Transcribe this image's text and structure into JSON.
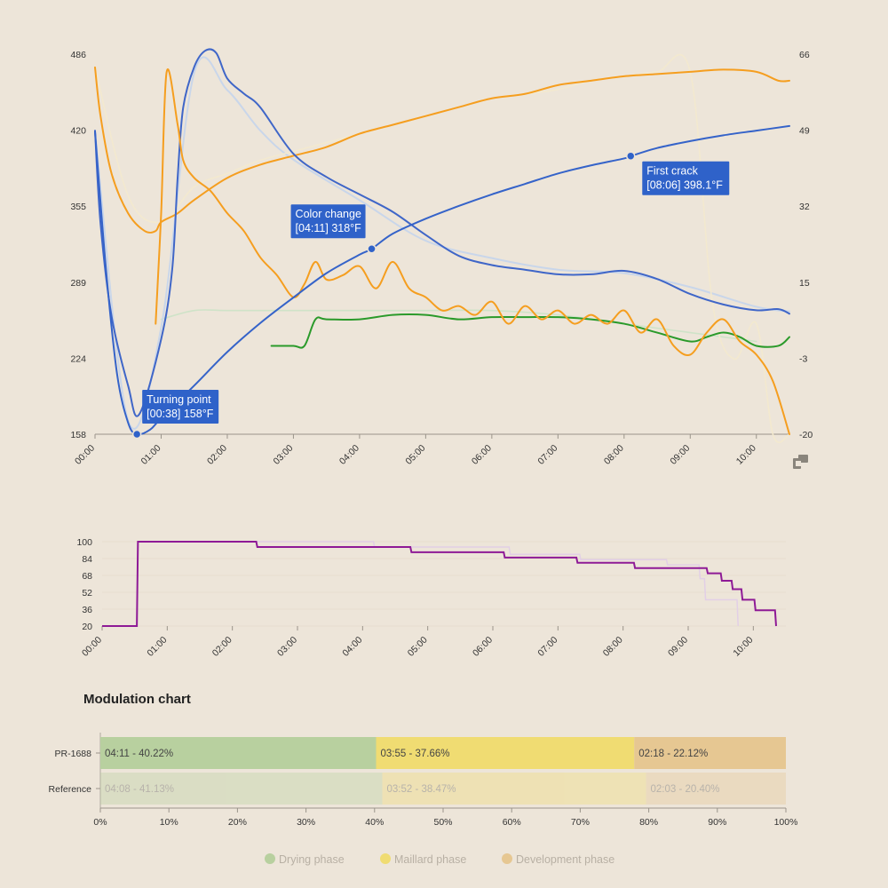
{
  "chart_data": [
    {
      "type": "line",
      "x_ticks": [
        "00:00",
        "01:00",
        "02:00",
        "03:00",
        "04:00",
        "05:00",
        "06:00",
        "07:00",
        "08:00",
        "09:00",
        "10:00"
      ],
      "y_left_ticks": [
        "486",
        "420",
        "355",
        "289",
        "224",
        "158"
      ],
      "y_right_ticks": [
        "66",
        "49",
        "32",
        "15",
        "-3",
        "-20"
      ],
      "ylim_left": [
        158,
        486
      ],
      "ylim_right": [
        -20,
        66
      ],
      "xlim_seconds": [
        0,
        630
      ],
      "colors": {
        "bean_temp": "#3563c9",
        "env_temp": "#3f66c8",
        "ror": "#f59e1f",
        "ror_env": "#f59e1f",
        "power": "#2a9a2a",
        "reference": "#f3e9cf",
        "reference_blue": "#c9d6ea",
        "reference_green": "#cfe3c8"
      },
      "series": [
        {
          "key": "bean_temp",
          "axis": "left",
          "x": [
            "00:00",
            "00:10",
            "00:20",
            "00:30",
            "00:38",
            "00:50",
            "01:00",
            "01:30",
            "02:00",
            "02:30",
            "03:00",
            "03:30",
            "04:00",
            "04:11",
            "04:30",
            "05:00",
            "05:30",
            "06:00",
            "06:30",
            "07:00",
            "07:30",
            "08:00",
            "08:06",
            "08:30",
            "09:00",
            "09:30",
            "10:00",
            "10:30"
          ],
          "y": [
            419,
            300,
            210,
            168,
            158,
            162,
            172,
            200,
            229,
            254,
            276,
            297,
            313,
            318,
            331,
            344,
            355,
            365,
            374,
            383,
            390,
            396,
            398,
            405,
            411,
            416,
            420,
            424
          ]
        },
        {
          "key": "env_temp",
          "axis": "left",
          "x": [
            "00:00",
            "00:05",
            "00:15",
            "00:30",
            "00:40",
            "01:00",
            "01:10",
            "01:15",
            "01:20",
            "01:30",
            "01:40",
            "01:50",
            "02:00",
            "02:15",
            "02:30",
            "03:00",
            "03:30",
            "04:00",
            "04:30",
            "05:00",
            "05:30",
            "06:00",
            "06:30",
            "07:00",
            "07:30",
            "08:00",
            "08:30",
            "09:00",
            "09:30",
            "10:00",
            "10:20",
            "10:30"
          ],
          "y": [
            420,
            340,
            260,
            200,
            175,
            240,
            300,
            380,
            440,
            475,
            489,
            487,
            465,
            452,
            440,
            400,
            380,
            365,
            350,
            330,
            312,
            304,
            300,
            296,
            296,
            299,
            292,
            279,
            270,
            265,
            266,
            262
          ]
        },
        {
          "key": "ror",
          "axis": "right",
          "x": [
            "00:00",
            "00:05",
            "00:15",
            "00:30",
            "00:45",
            "00:55",
            "01:00",
            "01:15",
            "01:30",
            "02:00",
            "02:30",
            "03:00",
            "03:30",
            "04:00",
            "04:30",
            "05:00",
            "05:30",
            "06:00",
            "06:30",
            "07:00",
            "07:30",
            "08:00",
            "08:30",
            "09:00",
            "09:30",
            "10:00",
            "10:20",
            "10:30"
          ],
          "y": [
            63,
            52,
            39,
            30,
            26,
            26,
            28,
            30,
            33,
            38,
            41,
            43,
            45,
            48,
            50,
            52,
            54,
            56,
            57,
            59,
            60,
            61,
            61.5,
            62,
            62.5,
            62,
            60,
            60
          ]
        },
        {
          "key": "ror_env",
          "axis": "right",
          "x": [
            "00:55",
            "01:00",
            "01:05",
            "01:15",
            "01:20",
            "01:30",
            "01:45",
            "02:00",
            "02:15",
            "02:30",
            "02:45",
            "03:00",
            "03:10",
            "03:20",
            "03:30",
            "03:45",
            "04:00",
            "04:15",
            "04:30",
            "04:45",
            "05:00",
            "05:15",
            "05:30",
            "05:45",
            "06:00",
            "06:15",
            "06:30",
            "06:45",
            "07:00",
            "07:15",
            "07:30",
            "07:45",
            "08:00",
            "08:15",
            "08:30",
            "08:45",
            "09:00",
            "09:15",
            "09:30",
            "09:45",
            "10:00",
            "10:15",
            "10:30"
          ],
          "y": [
            5,
            30,
            62,
            50,
            42,
            38,
            35,
            30,
            26,
            20,
            16,
            11,
            14,
            19,
            15,
            16,
            18,
            13,
            19,
            13,
            11,
            8,
            9,
            7,
            10,
            5,
            9,
            6,
            8,
            5,
            7,
            5,
            8,
            3,
            6,
            0,
            -2,
            3,
            6,
            1,
            -2,
            -8,
            -20
          ]
        },
        {
          "key": "power",
          "axis": "right",
          "x": [
            "02:40",
            "03:00",
            "03:10",
            "03:20",
            "03:30",
            "04:00",
            "04:30",
            "05:00",
            "05:30",
            "06:00",
            "06:30",
            "07:00",
            "07:30",
            "08:00",
            "08:30",
            "09:00",
            "09:15",
            "09:30",
            "09:45",
            "10:00",
            "10:20",
            "10:30"
          ],
          "y": [
            0,
            0,
            0,
            6,
            6,
            6,
            7,
            7,
            6,
            6.5,
            6.5,
            6.5,
            6,
            5,
            3,
            1,
            2,
            3,
            2,
            0,
            0,
            2
          ]
        },
        {
          "key": "reference",
          "axis": "right",
          "x": [
            "00:00",
            "00:30",
            "01:00",
            "01:30",
            "02:00",
            "02:30",
            "03:00",
            "03:30",
            "04:00",
            "04:30",
            "05:00",
            "05:30",
            "06:00",
            "06:30",
            "07:00",
            "07:30",
            "08:00",
            "08:30",
            "09:00",
            "09:20",
            "09:40",
            "10:00",
            "10:15",
            "10:30"
          ],
          "y": [
            63,
            34,
            28,
            36,
            39,
            42,
            44,
            46,
            48,
            50,
            52,
            54,
            56,
            57,
            58,
            60,
            61,
            62,
            62,
            10,
            -3,
            5,
            -20,
            -20
          ]
        },
        {
          "key": "reference_blue",
          "axis": "left",
          "x": [
            "00:00",
            "00:30",
            "01:00",
            "01:30",
            "02:00",
            "02:30",
            "03:00",
            "04:00",
            "05:00",
            "06:00",
            "07:00",
            "08:00",
            "09:00",
            "10:00",
            "10:30"
          ],
          "y": [
            419,
            170,
            250,
            470,
            455,
            420,
            395,
            360,
            325,
            310,
            300,
            297,
            285,
            268,
            264
          ]
        },
        {
          "key": "reference_green",
          "axis": "right",
          "x": [
            "01:00",
            "01:30",
            "02:00",
            "03:00",
            "04:00",
            "05:00",
            "06:00",
            "07:00",
            "08:00",
            "09:00",
            "10:00"
          ],
          "y": [
            6,
            8,
            8,
            8,
            8,
            8,
            8,
            7,
            5,
            3,
            1
          ]
        }
      ],
      "annotations": [
        {
          "x": "00:38",
          "y": 158,
          "line1": "Turning point",
          "line2": "[00:38] 158°F"
        },
        {
          "x": "04:11",
          "y": 318,
          "line1": "Color change",
          "line2": "[04:11] 318°F"
        },
        {
          "x": "08:06",
          "y": 398.1,
          "line1": "First crack",
          "line2": "[08:06] 398.1°F"
        }
      ]
    },
    {
      "type": "line",
      "x_ticks": [
        "00:00",
        "01:00",
        "02:00",
        "03:00",
        "04:00",
        "05:00",
        "06:00",
        "07:00",
        "08:00",
        "09:00",
        "10:00"
      ],
      "y_ticks": [
        "100",
        "84",
        "68",
        "52",
        "36",
        "20"
      ],
      "ylim": [
        20,
        100
      ],
      "colors": {
        "power": "#8e1a96",
        "reference": "#e2cfe6"
      },
      "series": [
        {
          "key": "power",
          "steps": [
            [
              "00:00",
              20
            ],
            [
              "00:32",
              20
            ],
            [
              "00:33",
              100
            ],
            [
              "02:22",
              100
            ],
            [
              "02:23",
              95
            ],
            [
              "04:44",
              95
            ],
            [
              "04:45",
              90
            ],
            [
              "06:10",
              90
            ],
            [
              "06:11",
              85
            ],
            [
              "07:17",
              85
            ],
            [
              "07:18",
              80
            ],
            [
              "08:10",
              80
            ],
            [
              "08:11",
              75
            ],
            [
              "09:17",
              75
            ],
            [
              "09:18",
              70
            ],
            [
              "09:30",
              70
            ],
            [
              "09:31",
              63
            ],
            [
              "09:40",
              63
            ],
            [
              "09:41",
              55
            ],
            [
              "09:49",
              55
            ],
            [
              "09:50",
              45
            ],
            [
              "10:01",
              45
            ],
            [
              "10:02",
              35
            ],
            [
              "10:20",
              35
            ],
            [
              "10:21",
              20
            ]
          ]
        },
        {
          "key": "reference",
          "steps": [
            [
              "00:00",
              20
            ],
            [
              "00:32",
              20
            ],
            [
              "00:33",
              100
            ],
            [
              "04:10",
              100
            ],
            [
              "04:11",
              95
            ],
            [
              "06:15",
              95
            ],
            [
              "06:16",
              88
            ],
            [
              "07:20",
              88
            ],
            [
              "07:21",
              83
            ],
            [
              "08:40",
              83
            ],
            [
              "08:41",
              78
            ],
            [
              "09:10",
              78
            ],
            [
              "09:11",
              65
            ],
            [
              "09:15",
              65
            ],
            [
              "09:16",
              45
            ],
            [
              "09:45",
              45
            ],
            [
              "09:46",
              20
            ]
          ]
        }
      ]
    },
    {
      "type": "bar",
      "title": "Modulation chart",
      "x_ticks": [
        "0%",
        "10%",
        "20%",
        "30%",
        "40%",
        "50%",
        "60%",
        "70%",
        "80%",
        "90%",
        "100%"
      ],
      "categories": [
        "PR-1688",
        "Reference"
      ],
      "series": [
        {
          "name": "Drying phase",
          "color": "#b8d09f",
          "values": [
            40.22,
            41.13
          ],
          "labels": [
            "04:11 - 40.22%",
            "04:08 - 41.13%"
          ]
        },
        {
          "name": "Maillard phase",
          "color": "#f0dc72",
          "values": [
            37.66,
            38.47
          ],
          "labels": [
            "03:55 - 37.66%",
            "03:52 - 38.47%"
          ]
        },
        {
          "name": "Development phase",
          "color": "#e6c792",
          "values": [
            22.12,
            20.4
          ],
          "labels": [
            "02:18 - 22.12%",
            "02:03 - 20.40%"
          ]
        }
      ],
      "legend": [
        "Drying phase",
        "Maillard phase",
        "Development phase"
      ]
    }
  ]
}
